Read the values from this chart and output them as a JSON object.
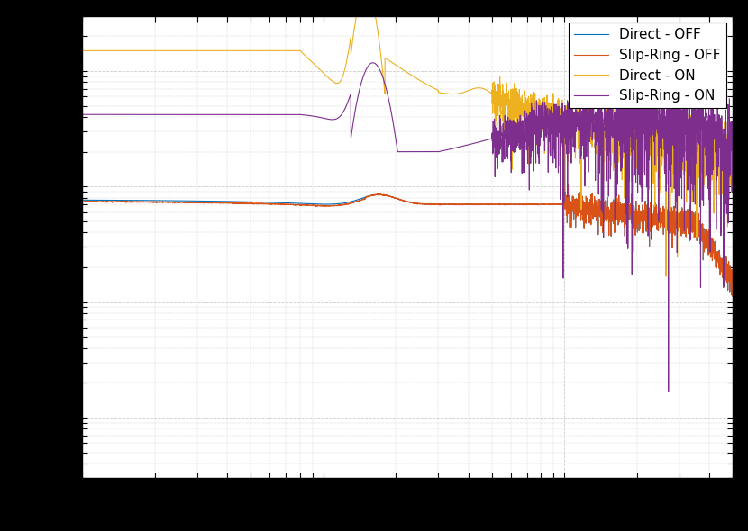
{
  "title": "",
  "xlabel": "",
  "ylabel": "",
  "legend_labels": [
    "Direct - OFF",
    "Slip-Ring - OFF",
    "Direct - ON",
    "Slip-Ring - ON"
  ],
  "line_colors": [
    "#0072bd",
    "#d95319",
    "#edb120",
    "#7e2f8e"
  ],
  "xlim": [
    1,
    500
  ],
  "ylim": [
    0.0003,
    3.0
  ],
  "background_color": "#ffffff",
  "grid_color": "#b0b0b0",
  "fig_bg": "#000000"
}
